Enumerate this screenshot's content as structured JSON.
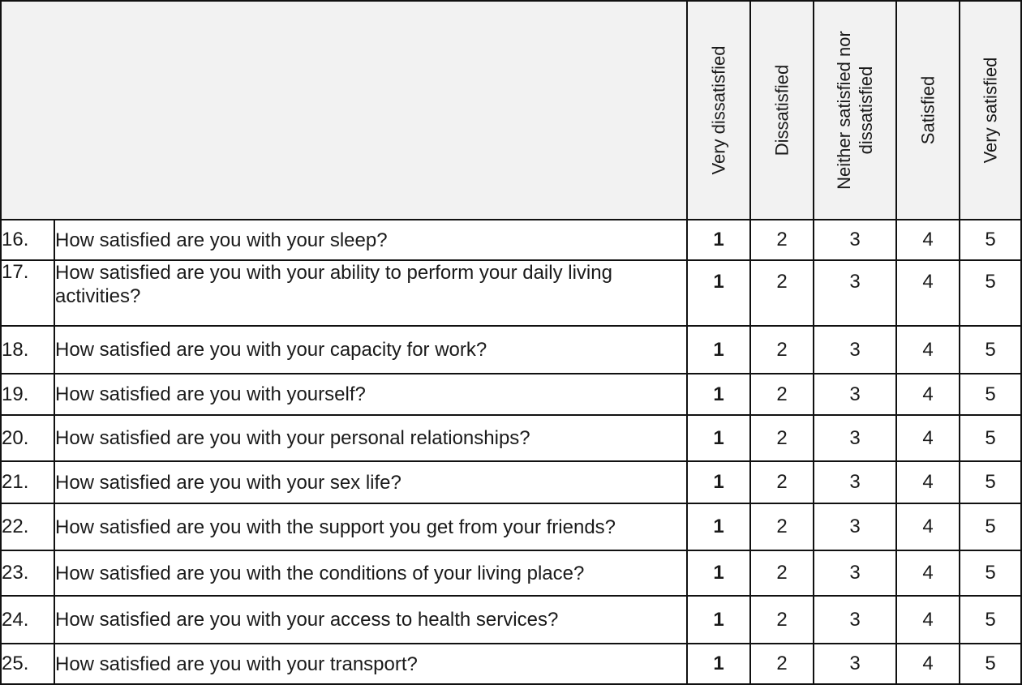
{
  "columns": [
    "Very dissatisfied",
    "Dissatisfied",
    "Neither satisfied nor\ndissatisfied",
    "Satisfied",
    "Very satisfied"
  ],
  "rows": [
    {
      "num": "16.",
      "question": "How satisfied are you with your sleep?",
      "options": [
        "1",
        "2",
        "3",
        "4",
        "5"
      ]
    },
    {
      "num": "17.",
      "question": "How satisfied are you with your ability to perform your daily living activities?",
      "options": [
        "1",
        "2",
        "3",
        "4",
        "5"
      ]
    },
    {
      "num": "18.",
      "question": "How satisfied are you with your capacity for work?",
      "options": [
        "1",
        "2",
        "3",
        "4",
        "5"
      ]
    },
    {
      "num": "19.",
      "question": "How satisfied are you with yourself?",
      "options": [
        "1",
        "2",
        "3",
        "4",
        "5"
      ]
    },
    {
      "num": "20.",
      "question": "How satisfied are you with your personal relationships?",
      "options": [
        "1",
        "2",
        "3",
        "4",
        "5"
      ]
    },
    {
      "num": "21.",
      "question": "How satisfied are you with your sex life?",
      "options": [
        "1",
        "2",
        "3",
        "4",
        "5"
      ]
    },
    {
      "num": "22.",
      "question": "How satisfied are you with the support you get from your friends?",
      "options": [
        "1",
        "2",
        "3",
        "4",
        "5"
      ]
    },
    {
      "num": "23.",
      "question": "How satisfied are you with the conditions of your living place?",
      "options": [
        "1",
        "2",
        "3",
        "4",
        "5"
      ]
    },
    {
      "num": "24.",
      "question": "How satisfied are you with your access to health services?",
      "options": [
        "1",
        "2",
        "3",
        "4",
        "5"
      ]
    },
    {
      "num": "25.",
      "question": "How satisfied are you with your transport?",
      "options": [
        "1",
        "2",
        "3",
        "4",
        "5"
      ]
    }
  ]
}
